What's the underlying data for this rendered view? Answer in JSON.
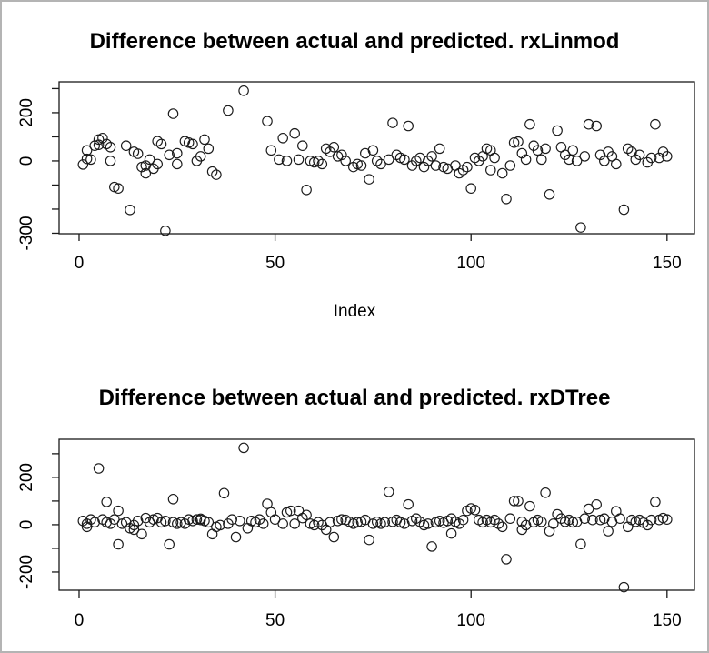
{
  "figure": {
    "background": "#ffffff",
    "frame_color": "#b4b4b4",
    "axis_color": "#1a1a1a",
    "point_color": "#1a1a1a"
  },
  "chart_data": [
    {
      "type": "scatter",
      "title": "Difference between actual and predicted. rxLinmod",
      "xlabel": "Index",
      "ylabel": "",
      "grid": false,
      "legend": null,
      "xlim": [
        -5.1,
        157
      ],
      "ylim": [
        -302,
        328
      ],
      "xticks": [
        0,
        50,
        100,
        150
      ],
      "xtick_labels": [
        "0",
        "50",
        "100",
        "150"
      ],
      "yticks": [
        300,
        200,
        100,
        0,
        -100,
        -200,
        -300
      ],
      "ytick_labels": [
        {
          "v": 200,
          "label": "200"
        },
        {
          "v": 0,
          "label": "0"
        },
        {
          "v": -300,
          "label": "-300"
        }
      ],
      "points": [
        [
          1,
          -15
        ],
        [
          2,
          44
        ],
        [
          2,
          9
        ],
        [
          3,
          6
        ],
        [
          4,
          63
        ],
        [
          5,
          67
        ],
        [
          5,
          89
        ],
        [
          6,
          95
        ],
        [
          7,
          70
        ],
        [
          8,
          0
        ],
        [
          8,
          57
        ],
        [
          9,
          -108
        ],
        [
          10,
          -114
        ],
        [
          12,
          63
        ],
        [
          13,
          -203
        ],
        [
          14,
          38
        ],
        [
          15,
          30
        ],
        [
          16,
          -25
        ],
        [
          17,
          -19
        ],
        [
          17,
          -51
        ],
        [
          18,
          6
        ],
        [
          19,
          -32
        ],
        [
          20,
          -13
        ],
        [
          20,
          82
        ],
        [
          21,
          70
        ],
        [
          22,
          -290
        ],
        [
          23,
          25
        ],
        [
          24,
          196
        ],
        [
          25,
          -13
        ],
        [
          25,
          32
        ],
        [
          27,
          82
        ],
        [
          28,
          76
        ],
        [
          29,
          70
        ],
        [
          30,
          0
        ],
        [
          31,
          19
        ],
        [
          32,
          89
        ],
        [
          33,
          51
        ],
        [
          34,
          -44
        ],
        [
          35,
          -57
        ],
        [
          38,
          209
        ],
        [
          42,
          291
        ],
        [
          48,
          165
        ],
        [
          49,
          44
        ],
        [
          51,
          6
        ],
        [
          52,
          95
        ],
        [
          53,
          0
        ],
        [
          55,
          114
        ],
        [
          56,
          6
        ],
        [
          57,
          63
        ],
        [
          58,
          -120
        ],
        [
          59,
          0
        ],
        [
          60,
          -6
        ],
        [
          61,
          0
        ],
        [
          62,
          -13
        ],
        [
          63,
          51
        ],
        [
          64,
          38
        ],
        [
          65,
          57
        ],
        [
          66,
          19
        ],
        [
          67,
          25
        ],
        [
          68,
          0
        ],
        [
          70,
          -25
        ],
        [
          71,
          -13
        ],
        [
          72,
          -19
        ],
        [
          73,
          32
        ],
        [
          74,
          -76
        ],
        [
          75,
          44
        ],
        [
          76,
          0
        ],
        [
          77,
          -13
        ],
        [
          79,
          6
        ],
        [
          80,
          158
        ],
        [
          81,
          25
        ],
        [
          82,
          13
        ],
        [
          83,
          6
        ],
        [
          84,
          145
        ],
        [
          85,
          -19
        ],
        [
          86,
          0
        ],
        [
          87,
          13
        ],
        [
          88,
          -25
        ],
        [
          89,
          0
        ],
        [
          90,
          19
        ],
        [
          91,
          -19
        ],
        [
          92,
          51
        ],
        [
          93,
          -25
        ],
        [
          94,
          -32
        ],
        [
          96,
          -19
        ],
        [
          97,
          -51
        ],
        [
          98,
          -38
        ],
        [
          99,
          -25
        ],
        [
          100,
          -114
        ],
        [
          101,
          13
        ],
        [
          102,
          0
        ],
        [
          103,
          19
        ],
        [
          104,
          51
        ],
        [
          105,
          44
        ],
        [
          105,
          -38
        ],
        [
          106,
          13
        ],
        [
          108,
          -51
        ],
        [
          109,
          -158
        ],
        [
          110,
          -19
        ],
        [
          111,
          76
        ],
        [
          112,
          80
        ],
        [
          113,
          32
        ],
        [
          114,
          6
        ],
        [
          115,
          152
        ],
        [
          116,
          63
        ],
        [
          117,
          44
        ],
        [
          118,
          6
        ],
        [
          119,
          51
        ],
        [
          120,
          -139
        ],
        [
          122,
          126
        ],
        [
          123,
          57
        ],
        [
          124,
          25
        ],
        [
          125,
          6
        ],
        [
          126,
          44
        ],
        [
          127,
          0
        ],
        [
          128,
          -276
        ],
        [
          129,
          19
        ],
        [
          130,
          152
        ],
        [
          132,
          145
        ],
        [
          133,
          25
        ],
        [
          134,
          0
        ],
        [
          135,
          38
        ],
        [
          136,
          19
        ],
        [
          137,
          -13
        ],
        [
          139,
          -202
        ],
        [
          140,
          51
        ],
        [
          141,
          38
        ],
        [
          142,
          6
        ],
        [
          143,
          25
        ],
        [
          145,
          -6
        ],
        [
          146,
          13
        ],
        [
          147,
          152
        ],
        [
          148,
          13
        ],
        [
          149,
          38
        ],
        [
          150,
          19
        ]
      ]
    },
    {
      "type": "scatter",
      "title": "Difference between actual and predicted. rxDTree",
      "xlabel": "",
      "ylabel": "",
      "grid": false,
      "legend": null,
      "xlim": [
        -5.1,
        157
      ],
      "ylim": [
        -277,
        361
      ],
      "xticks": [
        0,
        50,
        100,
        150
      ],
      "xtick_labels": [
        "0",
        "50",
        "100",
        "150"
      ],
      "yticks": [
        300,
        200,
        100,
        0,
        -100,
        -200
      ],
      "ytick_labels": [
        {
          "v": 200,
          "label": "200"
        },
        {
          "v": 0,
          "label": "0"
        },
        {
          "v": -200,
          "label": "-200"
        }
      ],
      "points": [
        [
          1,
          16
        ],
        [
          2,
          -9
        ],
        [
          2,
          4
        ],
        [
          3,
          22
        ],
        [
          4,
          10
        ],
        [
          5,
          238
        ],
        [
          6,
          22
        ],
        [
          7,
          96
        ],
        [
          7,
          10
        ],
        [
          8,
          4
        ],
        [
          9,
          22
        ],
        [
          10,
          -83
        ],
        [
          10,
          59
        ],
        [
          11,
          4
        ],
        [
          12,
          10
        ],
        [
          13,
          -15
        ],
        [
          14,
          -2
        ],
        [
          14,
          -21
        ],
        [
          15,
          16
        ],
        [
          16,
          -40
        ],
        [
          17,
          28
        ],
        [
          18,
          10
        ],
        [
          19,
          22
        ],
        [
          20,
          28
        ],
        [
          21,
          10
        ],
        [
          22,
          16
        ],
        [
          23,
          -83
        ],
        [
          24,
          108
        ],
        [
          24,
          10
        ],
        [
          25,
          4
        ],
        [
          26,
          10
        ],
        [
          27,
          4
        ],
        [
          28,
          22
        ],
        [
          29,
          16
        ],
        [
          30,
          22
        ],
        [
          31,
          20
        ],
        [
          31,
          25
        ],
        [
          32,
          16
        ],
        [
          33,
          10
        ],
        [
          34,
          -40
        ],
        [
          35,
          -9
        ],
        [
          36,
          -2
        ],
        [
          37,
          133
        ],
        [
          38,
          4
        ],
        [
          39,
          22
        ],
        [
          40,
          -52
        ],
        [
          41,
          16
        ],
        [
          42,
          325
        ],
        [
          43,
          -15
        ],
        [
          44,
          16
        ],
        [
          45,
          10
        ],
        [
          46,
          22
        ],
        [
          47,
          4
        ],
        [
          48,
          88
        ],
        [
          49,
          52
        ],
        [
          50,
          22
        ],
        [
          52,
          4
        ],
        [
          53,
          52
        ],
        [
          54,
          59
        ],
        [
          55,
          4
        ],
        [
          56,
          59
        ],
        [
          57,
          28
        ],
        [
          58,
          41
        ],
        [
          59,
          4
        ],
        [
          60,
          -2
        ],
        [
          61,
          10
        ],
        [
          62,
          -2
        ],
        [
          63,
          -21
        ],
        [
          64,
          10
        ],
        [
          65,
          -52
        ],
        [
          66,
          16
        ],
        [
          67,
          22
        ],
        [
          68,
          20
        ],
        [
          69,
          12
        ],
        [
          70,
          4
        ],
        [
          71,
          10
        ],
        [
          72,
          12
        ],
        [
          73,
          20
        ],
        [
          74,
          -64
        ],
        [
          75,
          4
        ],
        [
          76,
          12
        ],
        [
          77,
          4
        ],
        [
          78,
          10
        ],
        [
          79,
          139
        ],
        [
          80,
          12
        ],
        [
          81,
          20
        ],
        [
          82,
          10
        ],
        [
          83,
          4
        ],
        [
          84,
          86
        ],
        [
          85,
          16
        ],
        [
          86,
          26
        ],
        [
          87,
          12
        ],
        [
          88,
          -2
        ],
        [
          89,
          4
        ],
        [
          90,
          -92
        ],
        [
          91,
          10
        ],
        [
          92,
          16
        ],
        [
          93,
          8
        ],
        [
          94,
          16
        ],
        [
          95,
          26
        ],
        [
          95,
          -37
        ],
        [
          96,
          12
        ],
        [
          97,
          4
        ],
        [
          98,
          20
        ],
        [
          99,
          59
        ],
        [
          100,
          69
        ],
        [
          101,
          62
        ],
        [
          102,
          20
        ],
        [
          103,
          10
        ],
        [
          104,
          20
        ],
        [
          105,
          10
        ],
        [
          106,
          20
        ],
        [
          107,
          4
        ],
        [
          108,
          -9
        ],
        [
          109,
          -146
        ],
        [
          110,
          26
        ],
        [
          111,
          100
        ],
        [
          112,
          100
        ],
        [
          113,
          12
        ],
        [
          113,
          -21
        ],
        [
          114,
          -2
        ],
        [
          115,
          78
        ],
        [
          116,
          10
        ],
        [
          117,
          20
        ],
        [
          118,
          12
        ],
        [
          119,
          135
        ],
        [
          120,
          -27
        ],
        [
          121,
          4
        ],
        [
          122,
          44
        ],
        [
          123,
          26
        ],
        [
          124,
          12
        ],
        [
          125,
          20
        ],
        [
          126,
          10
        ],
        [
          127,
          12
        ],
        [
          128,
          -82
        ],
        [
          129,
          26
        ],
        [
          130,
          67
        ],
        [
          131,
          20
        ],
        [
          132,
          85
        ],
        [
          133,
          20
        ],
        [
          134,
          26
        ],
        [
          135,
          -27
        ],
        [
          136,
          12
        ],
        [
          137,
          57
        ],
        [
          138,
          26
        ],
        [
          139,
          -264
        ],
        [
          140,
          -9
        ],
        [
          141,
          20
        ],
        [
          142,
          12
        ],
        [
          143,
          20
        ],
        [
          144,
          8
        ],
        [
          145,
          -2
        ],
        [
          146,
          20
        ],
        [
          147,
          96
        ],
        [
          148,
          20
        ],
        [
          149,
          28
        ],
        [
          150,
          22
        ]
      ]
    }
  ]
}
